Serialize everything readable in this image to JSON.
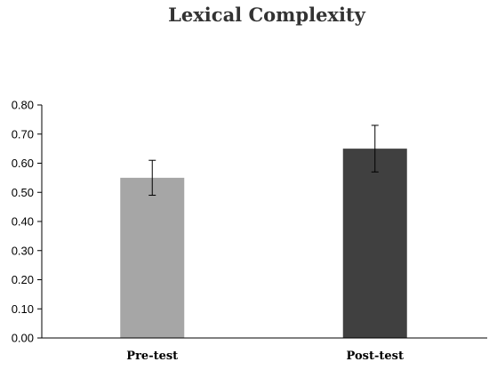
{
  "chart_data": {
    "type": "bar",
    "title": "Lexical Complexity",
    "xlabel": "",
    "ylabel": "",
    "ylim": [
      0,
      0.8
    ],
    "yticks": [
      "0.00",
      "0.10",
      "0.20",
      "0.30",
      "0.40",
      "0.50",
      "0.60",
      "0.70",
      "0.80"
    ],
    "categories": [
      "Pre-test",
      "Post-test"
    ],
    "values": [
      0.55,
      0.65
    ],
    "error_low": [
      0.49,
      0.57
    ],
    "error_high": [
      0.61,
      0.73
    ],
    "bar_colors": [
      "#a6a6a6",
      "#404040"
    ],
    "grid": false,
    "legend": "none"
  }
}
